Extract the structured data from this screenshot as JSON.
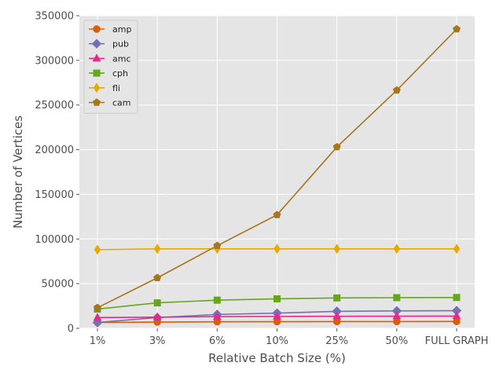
{
  "chart_data": {
    "type": "line",
    "title": "",
    "xlabel": "Relative Batch Size (%)",
    "ylabel": "Number of Vertices",
    "categories": [
      "1%",
      "3%",
      "6%",
      "10%",
      "25%",
      "50%",
      "FULL GRAPH"
    ],
    "ylim": [
      0,
      350000
    ],
    "yticks": [
      0,
      50000,
      100000,
      150000,
      200000,
      250000,
      300000,
      350000
    ],
    "grid": true,
    "legend_position": "top-left",
    "series": [
      {
        "name": "amp",
        "color": "#d95f02",
        "marker": "circle",
        "values": [
          6500,
          7000,
          7300,
          7400,
          7500,
          7500,
          7600
        ]
      },
      {
        "name": "pub",
        "color": "#7570b3",
        "marker": "diamond",
        "values": [
          6500,
          12000,
          15500,
          17000,
          19000,
          19500,
          19700
        ]
      },
      {
        "name": "amc",
        "color": "#e7298a",
        "marker": "triangle",
        "values": [
          12000,
          12500,
          13000,
          13300,
          13500,
          13600,
          13700
        ]
      },
      {
        "name": "cph",
        "color": "#66a61e",
        "marker": "square",
        "values": [
          21500,
          28500,
          31500,
          33000,
          34000,
          34300,
          34500
        ]
      },
      {
        "name": "fli",
        "color": "#e6ab02",
        "marker": "thin-diamond",
        "values": [
          88000,
          89000,
          89000,
          89000,
          89000,
          89000,
          89000
        ]
      },
      {
        "name": "cam",
        "color": "#a6761d",
        "marker": "pentagon",
        "values": [
          23000,
          56500,
          92500,
          127000,
          203000,
          266500,
          335000
        ]
      }
    ]
  }
}
